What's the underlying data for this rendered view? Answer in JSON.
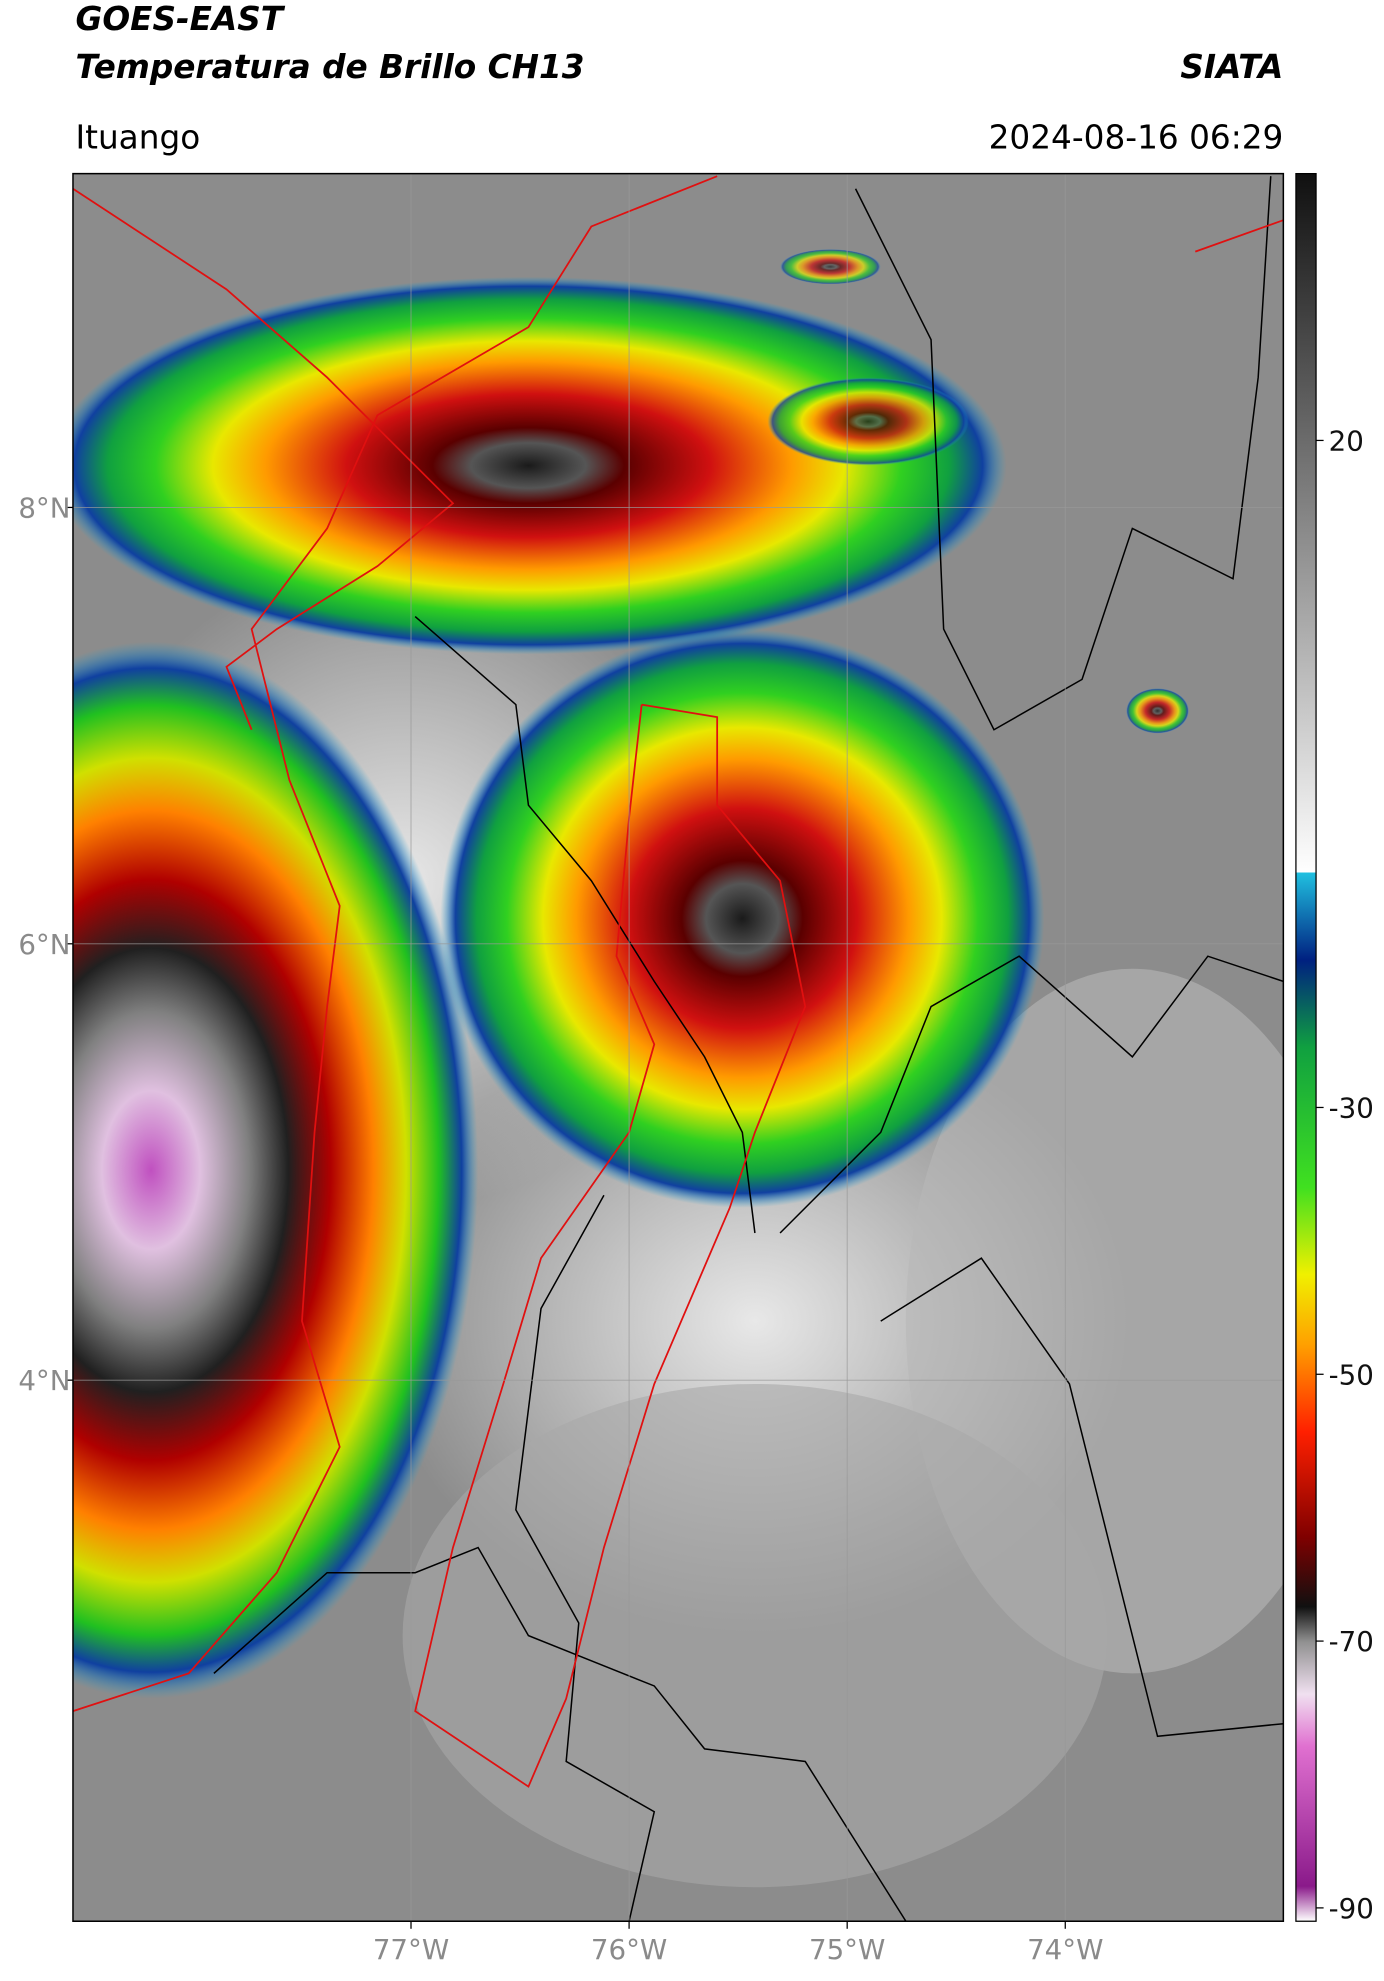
{
  "chart_data": {
    "type": "map",
    "title": "GOES-EAST",
    "subtitle": "Temperatura de Brillo CH13",
    "source": "SIATA",
    "location": "Ituango",
    "timestamp": "2024-08-16 06:29",
    "xlim": [
      -78.55,
      -73.0
    ],
    "ylim": [
      1.52,
      9.53
    ],
    "xticks": [
      {
        "value": -77,
        "label": "77°W"
      },
      {
        "value": -76,
        "label": "76°W"
      },
      {
        "value": -75,
        "label": "75°W"
      },
      {
        "value": -74,
        "label": "74°W"
      }
    ],
    "yticks": [
      {
        "value": 8,
        "label": "8°N"
      },
      {
        "value": 6,
        "label": "6°N"
      },
      {
        "value": 4,
        "label": "4°N"
      }
    ],
    "grid": true,
    "colorbar": {
      "lim": [
        -91,
        40
      ],
      "ticks": [
        20,
        -30,
        -50,
        -70,
        -90
      ]
    }
  }
}
